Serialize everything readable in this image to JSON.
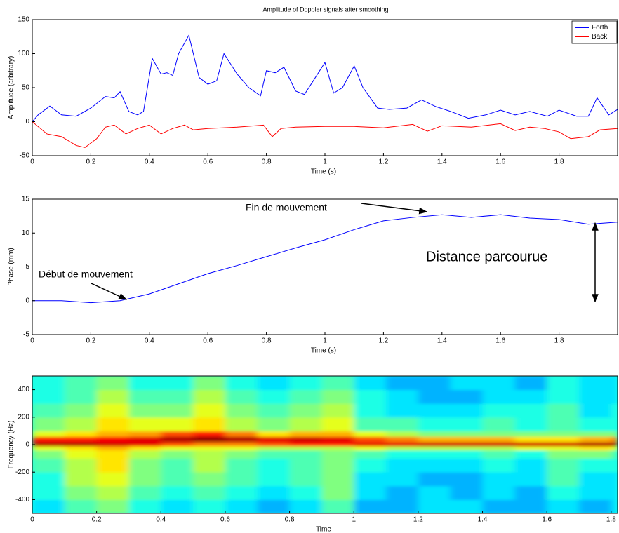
{
  "chart_data": [
    {
      "type": "line",
      "title": "Amplitude of Doppler signals after smoothing",
      "x_label": "Time (s)",
      "y_label": "Amplitude (arbitrary)",
      "xlim": [
        0,
        2
      ],
      "xticks": [
        0,
        0.2,
        0.4,
        0.6,
        0.8,
        1,
        1.2,
        1.4,
        1.6,
        1.8
      ],
      "ylim": [
        -50,
        150
      ],
      "yticks": [
        -50,
        0,
        50,
        100,
        150
      ],
      "legend": "upper right",
      "series": [
        {
          "name": "Forth",
          "color": "#0000ff",
          "x": [
            0,
            0.02,
            0.06,
            0.1,
            0.15,
            0.2,
            0.25,
            0.28,
            0.3,
            0.33,
            0.36,
            0.38,
            0.41,
            0.44,
            0.46,
            0.48,
            0.5,
            0.535,
            0.57,
            0.6,
            0.63,
            0.655,
            0.7,
            0.74,
            0.78,
            0.8,
            0.83,
            0.86,
            0.9,
            0.93,
            0.96,
            1.0,
            1.03,
            1.06,
            1.1,
            1.13,
            1.18,
            1.22,
            1.28,
            1.33,
            1.38,
            1.43,
            1.49,
            1.55,
            1.6,
            1.65,
            1.7,
            1.76,
            1.8,
            1.86,
            1.9,
            1.93,
            1.97,
            2.0
          ],
          "values": [
            0,
            10,
            23,
            10,
            8,
            20,
            37,
            35,
            44,
            15,
            10,
            15,
            93,
            70,
            72,
            68,
            100,
            127,
            65,
            55,
            60,
            100,
            70,
            50,
            38,
            75,
            72,
            80,
            45,
            40,
            60,
            87,
            42,
            50,
            82,
            50,
            20,
            18,
            20,
            32,
            22,
            15,
            5,
            10,
            17,
            10,
            15,
            8,
            17,
            8,
            8,
            35,
            10,
            18
          ]
        },
        {
          "name": "Back",
          "color": "#ff0000",
          "x": [
            0,
            0.05,
            0.1,
            0.15,
            0.18,
            0.22,
            0.25,
            0.28,
            0.32,
            0.36,
            0.4,
            0.44,
            0.48,
            0.52,
            0.55,
            0.6,
            0.7,
            0.79,
            0.82,
            0.85,
            0.9,
            1.0,
            1.1,
            1.2,
            1.3,
            1.35,
            1.4,
            1.5,
            1.6,
            1.65,
            1.7,
            1.75,
            1.8,
            1.84,
            1.9,
            1.94,
            2.0
          ],
          "values": [
            0,
            -18,
            -22,
            -35,
            -38,
            -25,
            -8,
            -5,
            -18,
            -10,
            -5,
            -18,
            -10,
            -5,
            -12,
            -10,
            -8,
            -5,
            -22,
            -10,
            -8,
            -7,
            -7,
            -9,
            -4,
            -14,
            -6,
            -8,
            -3,
            -13,
            -8,
            -10,
            -15,
            -25,
            -22,
            -12,
            -10
          ]
        }
      ]
    },
    {
      "type": "line",
      "x_label": "Time (s)",
      "y_label": "Phase (mm)",
      "xlim": [
        0,
        2
      ],
      "xticks": [
        0,
        0.2,
        0.4,
        0.6,
        0.8,
        1,
        1.2,
        1.4,
        1.6,
        1.8
      ],
      "ylim": [
        -5,
        15
      ],
      "yticks": [
        -5,
        0,
        5,
        10,
        15
      ],
      "annotations": [
        "Fin de mouvement",
        "Début de mouvement",
        "Distance parcourue"
      ],
      "series": [
        {
          "color": "#0000ff",
          "x": [
            0,
            0.1,
            0.2,
            0.3,
            0.4,
            0.5,
            0.6,
            0.7,
            0.8,
            0.9,
            1.0,
            1.1,
            1.2,
            1.3,
            1.4,
            1.5,
            1.6,
            1.7,
            1.8,
            1.9,
            2.0
          ],
          "values": [
            0,
            0,
            -0.3,
            0,
            1,
            2.5,
            4,
            5.2,
            6.5,
            7.8,
            9,
            10.5,
            11.8,
            12.3,
            12.7,
            12.3,
            12.7,
            12.2,
            12,
            11.3,
            11.6
          ]
        }
      ]
    },
    {
      "type": "heatmap",
      "x_label": "Time",
      "y_label": "Frequency (Hz)",
      "xlim": [
        0,
        1.82
      ],
      "xticks": [
        0,
        0.2,
        0.4,
        0.6,
        0.8,
        1,
        1.2,
        1.4,
        1.6,
        1.8
      ],
      "ylim": [
        -500,
        500
      ],
      "yticks": [
        -400,
        -200,
        0,
        200,
        400
      ],
      "colormap": "jet",
      "x_edges": [
        0,
        0.1,
        0.2,
        0.3,
        0.4,
        0.5,
        0.6,
        0.7,
        0.8,
        0.9,
        1.0,
        1.1,
        1.2,
        1.3,
        1.4,
        1.5,
        1.6,
        1.7,
        1.8,
        1.82
      ],
      "y_edges": [
        -500,
        -400,
        -300,
        -200,
        -100,
        -40,
        -10,
        20,
        60,
        100,
        200,
        300,
        400,
        500
      ],
      "z": [
        [
          0.35,
          0.45,
          0.5,
          0.4,
          0.35,
          0.4,
          0.35,
          0.3,
          0.35,
          0.45,
          0.3,
          0.3,
          0.35,
          0.35,
          0.3,
          0.3,
          0.35,
          0.3,
          0.35
        ],
        [
          0.4,
          0.5,
          0.55,
          0.45,
          0.4,
          0.45,
          0.4,
          0.35,
          0.4,
          0.5,
          0.35,
          0.3,
          0.35,
          0.3,
          0.35,
          0.3,
          0.4,
          0.35,
          0.35
        ],
        [
          0.4,
          0.55,
          0.6,
          0.5,
          0.45,
          0.5,
          0.45,
          0.4,
          0.45,
          0.5,
          0.35,
          0.35,
          0.3,
          0.3,
          0.35,
          0.35,
          0.45,
          0.35,
          0.35
        ],
        [
          0.45,
          0.55,
          0.65,
          0.5,
          0.45,
          0.55,
          0.45,
          0.4,
          0.45,
          0.5,
          0.4,
          0.35,
          0.35,
          0.35,
          0.4,
          0.35,
          0.45,
          0.4,
          0.4
        ],
        [
          0.5,
          0.6,
          0.65,
          0.55,
          0.5,
          0.55,
          0.5,
          0.45,
          0.45,
          0.5,
          0.45,
          0.4,
          0.4,
          0.4,
          0.45,
          0.4,
          0.5,
          0.5,
          0.45
        ],
        [
          0.6,
          0.65,
          0.7,
          0.65,
          0.6,
          0.6,
          0.6,
          0.55,
          0.55,
          0.55,
          0.6,
          0.55,
          0.55,
          0.55,
          0.55,
          0.6,
          0.6,
          0.65,
          0.6
        ],
        [
          0.95,
          0.95,
          0.92,
          0.9,
          0.8,
          0.75,
          0.75,
          0.8,
          0.85,
          0.85,
          0.9,
          0.9,
          0.92,
          0.92,
          0.92,
          0.92,
          0.92,
          0.95,
          0.95
        ],
        [
          0.85,
          0.85,
          0.88,
          0.9,
          0.95,
          0.98,
          0.95,
          0.9,
          0.92,
          0.9,
          0.8,
          0.75,
          0.7,
          0.7,
          0.7,
          0.65,
          0.65,
          0.7,
          0.75
        ],
        [
          0.6,
          0.65,
          0.7,
          0.72,
          0.8,
          0.85,
          0.75,
          0.65,
          0.7,
          0.7,
          0.6,
          0.55,
          0.5,
          0.5,
          0.5,
          0.5,
          0.5,
          0.5,
          0.5
        ],
        [
          0.5,
          0.55,
          0.65,
          0.6,
          0.6,
          0.65,
          0.55,
          0.5,
          0.55,
          0.6,
          0.45,
          0.45,
          0.4,
          0.4,
          0.45,
          0.4,
          0.45,
          0.4,
          0.4
        ],
        [
          0.45,
          0.5,
          0.6,
          0.5,
          0.5,
          0.6,
          0.5,
          0.45,
          0.5,
          0.55,
          0.4,
          0.35,
          0.35,
          0.35,
          0.4,
          0.4,
          0.45,
          0.35,
          0.4
        ],
        [
          0.4,
          0.45,
          0.55,
          0.45,
          0.45,
          0.55,
          0.45,
          0.4,
          0.45,
          0.5,
          0.4,
          0.35,
          0.3,
          0.3,
          0.35,
          0.35,
          0.4,
          0.35,
          0.35
        ],
        [
          0.4,
          0.45,
          0.5,
          0.4,
          0.4,
          0.5,
          0.4,
          0.35,
          0.4,
          0.45,
          0.35,
          0.3,
          0.3,
          0.35,
          0.35,
          0.3,
          0.4,
          0.35,
          0.35
        ]
      ]
    }
  ]
}
